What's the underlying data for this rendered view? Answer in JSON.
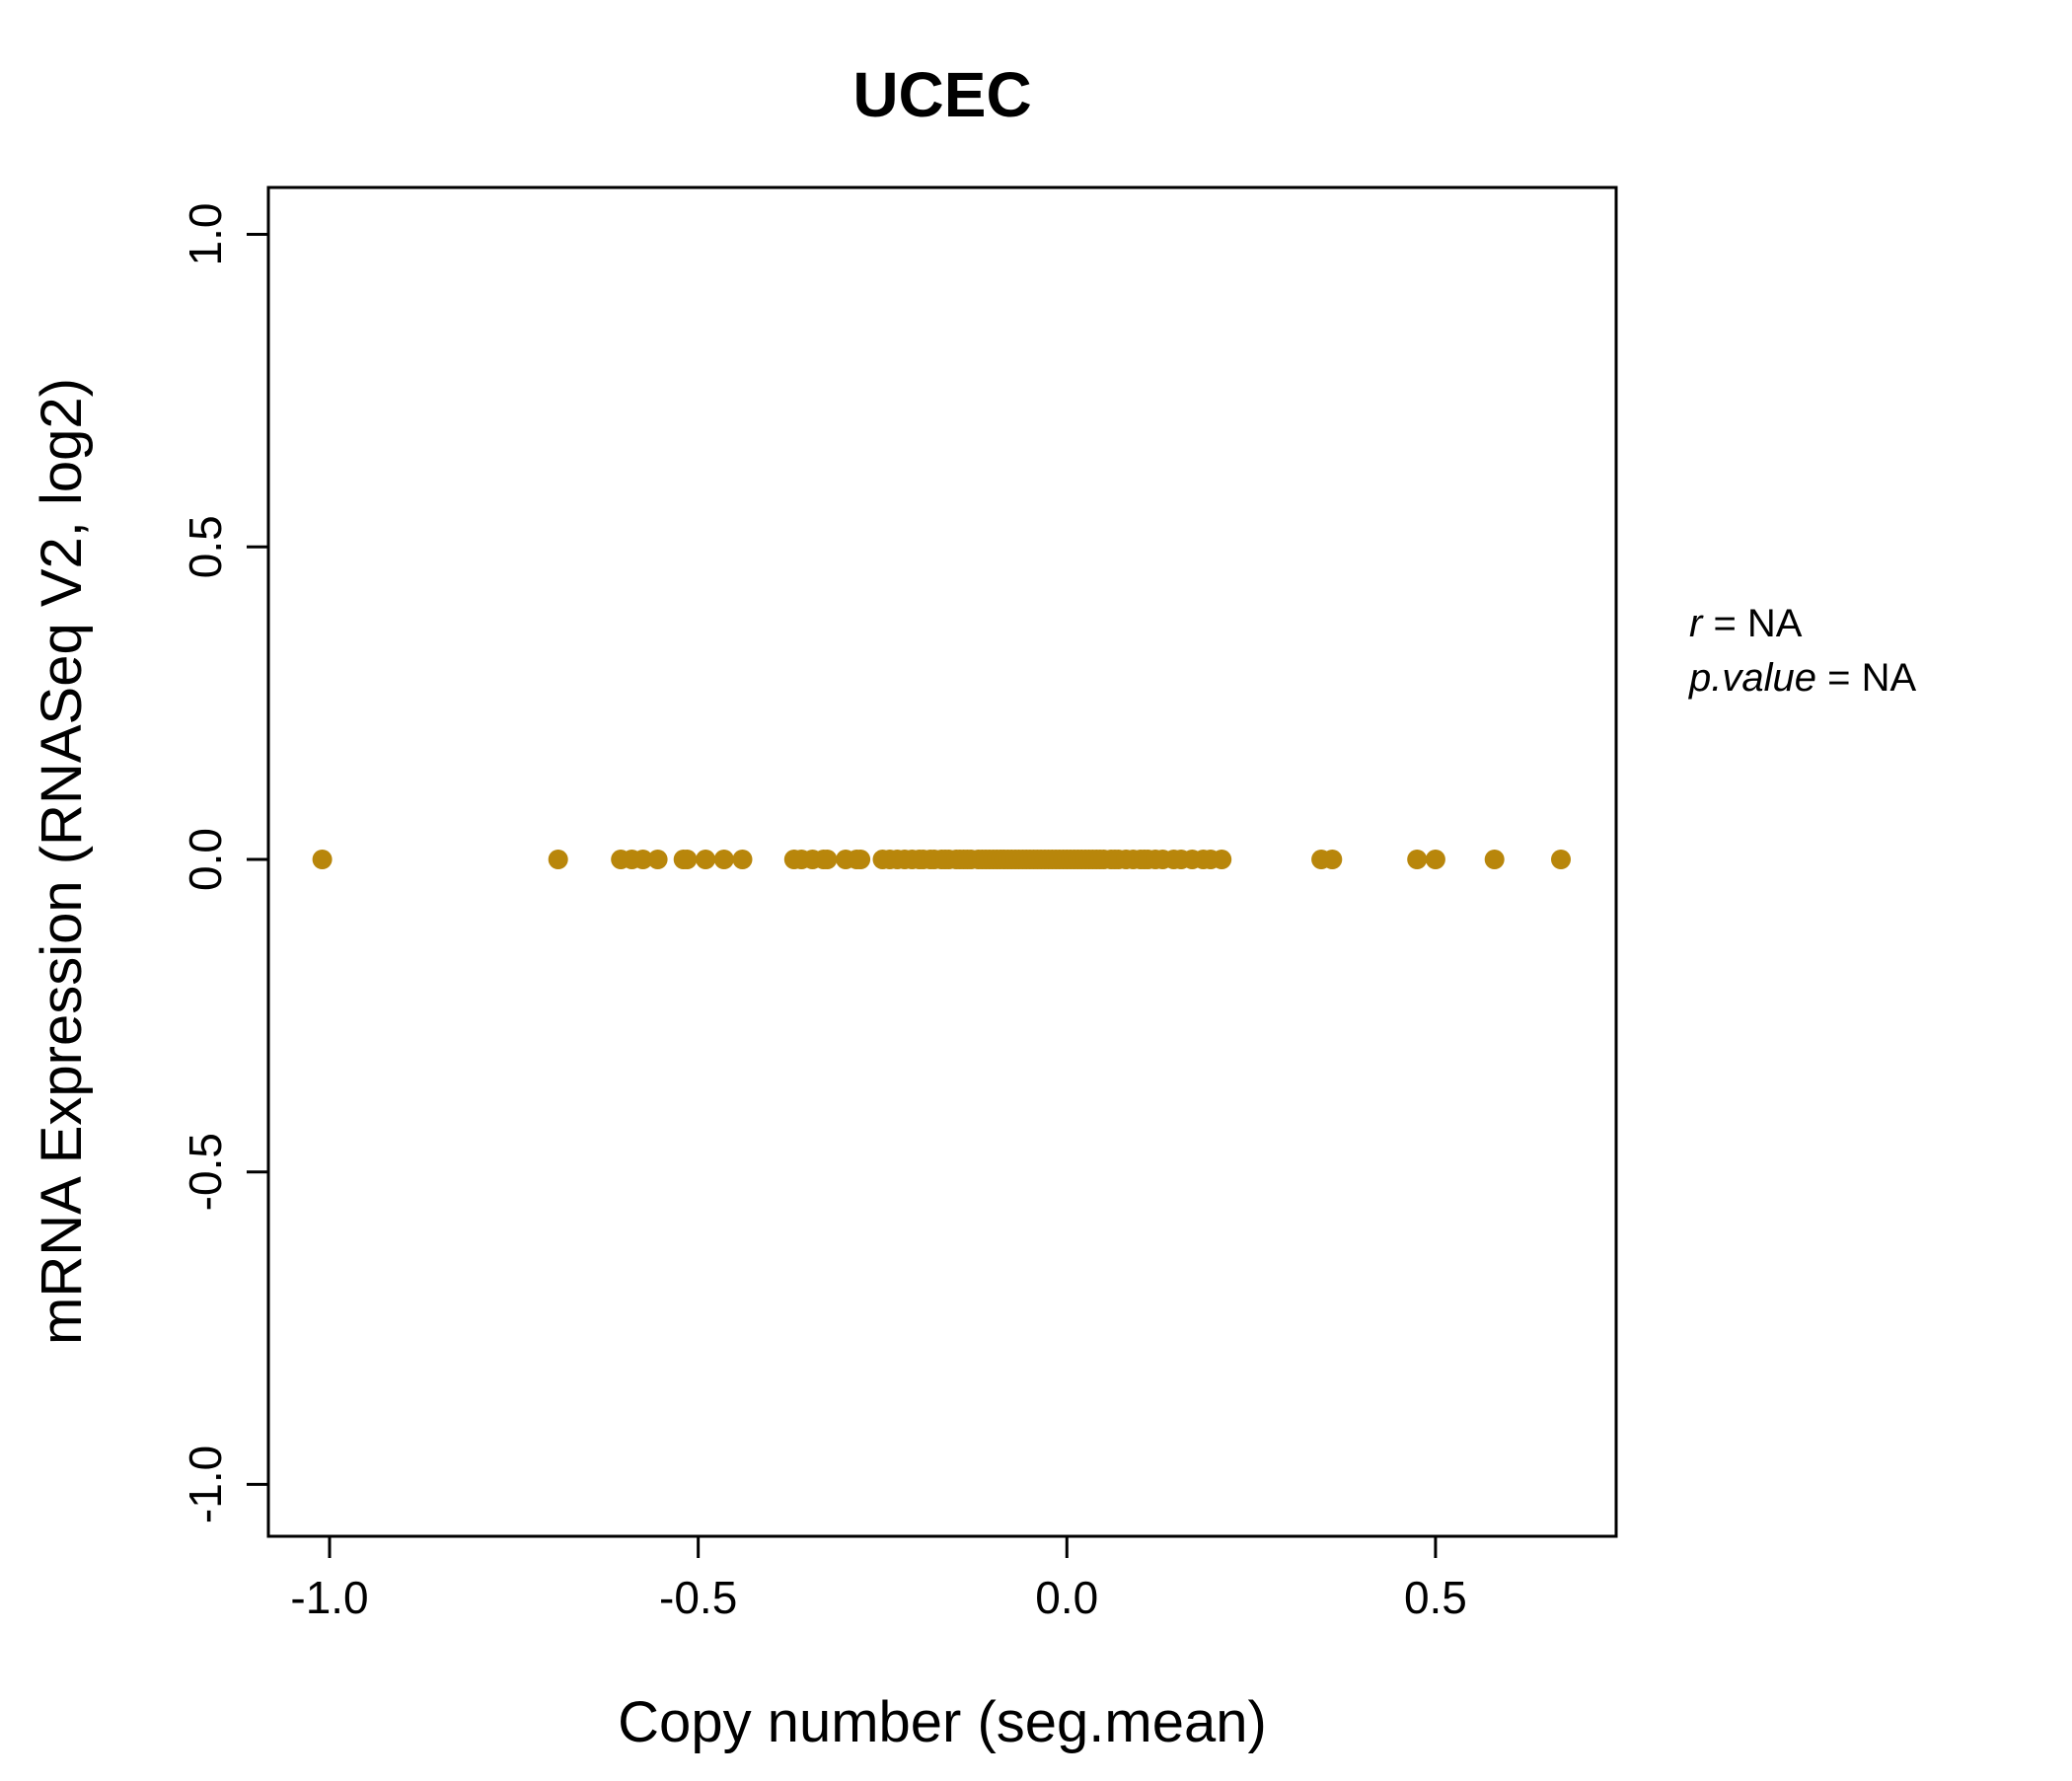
{
  "chart_data": {
    "type": "scatter",
    "title": "UCEC",
    "xlabel": "Copy number (seg.mean)",
    "ylabel": "mRNA Expression (RNASeq V2, log2)",
    "xlim": [
      -1.083,
      0.745
    ],
    "ylim": [
      -1.083,
      1.075
    ],
    "x_tick_labels": [
      "-1.0",
      "-0.5",
      "0.0",
      "0.5"
    ],
    "x_tick_values": [
      -1.0,
      -0.5,
      0.0,
      0.5
    ],
    "y_tick_labels": [
      "-1.0",
      "-0.5",
      "0.0",
      "0.5",
      "1.0"
    ],
    "y_tick_values": [
      -1.0,
      -0.5,
      0.0,
      0.5,
      1.0
    ],
    "grid": false,
    "legend": "none",
    "point_color": "#B8860B",
    "title_color": "#B8860B",
    "y_value_all_points": 0,
    "x_values": [
      -1.01,
      -0.69,
      -0.605,
      -0.59,
      -0.575,
      -0.555,
      -0.52,
      -0.515,
      -0.49,
      -0.465,
      -0.44,
      -0.37,
      -0.36,
      -0.345,
      -0.33,
      -0.325,
      -0.3,
      -0.285,
      -0.28,
      -0.25,
      -0.24,
      -0.23,
      -0.22,
      -0.21,
      -0.2,
      -0.195,
      -0.185,
      -0.18,
      -0.17,
      -0.165,
      -0.16,
      -0.15,
      -0.145,
      -0.14,
      -0.135,
      -0.13,
      -0.12,
      -0.115,
      -0.11,
      -0.105,
      -0.1,
      -0.095,
      -0.09,
      -0.085,
      -0.08,
      -0.075,
      -0.07,
      -0.065,
      -0.06,
      -0.055,
      -0.05,
      -0.045,
      -0.04,
      -0.035,
      -0.03,
      -0.025,
      -0.02,
      -0.015,
      -0.01,
      -0.005,
      0,
      0.005,
      0.01,
      0.015,
      0.02,
      0.025,
      0.03,
      0.035,
      0.04,
      0.045,
      0.05,
      0.06,
      0.065,
      0.07,
      0.08,
      0.09,
      0.1,
      0.105,
      0.11,
      0.12,
      0.13,
      0.145,
      0.155,
      0.17,
      0.185,
      0.195,
      0.21,
      0.345,
      0.36,
      0.475,
      0.5,
      0.58,
      0.67
    ]
  },
  "annotation": {
    "line1": {
      "var": "r",
      "rest": " = NA"
    },
    "line2": {
      "var": "p.value",
      "rest": " = NA"
    }
  }
}
